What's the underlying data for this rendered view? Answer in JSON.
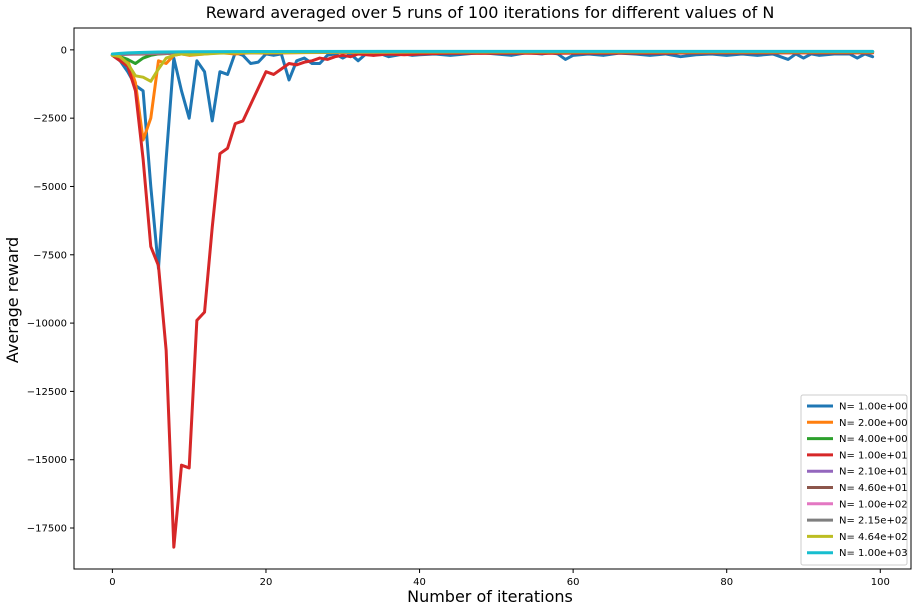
{
  "chart_data": {
    "type": "line",
    "title": "Reward averaged over 5 runs of 100 iterations for different values of N",
    "xlabel": "Number of iterations",
    "ylabel": "Average reward",
    "xlim": [
      -5,
      104
    ],
    "ylim": [
      -19000,
      800
    ],
    "xticks": [
      0,
      20,
      40,
      60,
      80,
      100
    ],
    "yticks": [
      0,
      -2500,
      -5000,
      -7500,
      -10000,
      -12500,
      -15000,
      -17500
    ],
    "grid": false,
    "legend_position": "bottom-right",
    "series": [
      {
        "name": "N= 1.00e+00",
        "color": "#1f77b4",
        "points": [
          [
            0,
            -200
          ],
          [
            1,
            -400
          ],
          [
            2,
            -800
          ],
          [
            3,
            -1300
          ],
          [
            4,
            -1500
          ],
          [
            5,
            -5000
          ],
          [
            6,
            -8000
          ],
          [
            7,
            -4000
          ],
          [
            8,
            -300
          ],
          [
            9,
            -1500
          ],
          [
            10,
            -2500
          ],
          [
            11,
            -400
          ],
          [
            12,
            -800
          ],
          [
            13,
            -2600
          ],
          [
            14,
            -800
          ],
          [
            15,
            -900
          ],
          [
            16,
            -100
          ],
          [
            17,
            -200
          ],
          [
            18,
            -500
          ],
          [
            19,
            -450
          ],
          [
            20,
            -150
          ],
          [
            21,
            -200
          ],
          [
            22,
            -150
          ],
          [
            23,
            -1100
          ],
          [
            24,
            -400
          ],
          [
            25,
            -300
          ],
          [
            26,
            -500
          ],
          [
            27,
            -500
          ],
          [
            28,
            -200
          ],
          [
            29,
            -150
          ],
          [
            30,
            -300
          ],
          [
            31,
            -150
          ],
          [
            32,
            -400
          ],
          [
            33,
            -150
          ],
          [
            34,
            -200
          ],
          [
            35,
            -150
          ],
          [
            36,
            -250
          ],
          [
            37,
            -200
          ],
          [
            38,
            -150
          ],
          [
            39,
            -200
          ],
          [
            40,
            -180
          ],
          [
            42,
            -150
          ],
          [
            44,
            -200
          ],
          [
            46,
            -150
          ],
          [
            48,
            -100
          ],
          [
            50,
            -150
          ],
          [
            52,
            -200
          ],
          [
            54,
            -100
          ],
          [
            56,
            -150
          ],
          [
            57,
            -100
          ],
          [
            58,
            -150
          ],
          [
            59,
            -350
          ],
          [
            60,
            -200
          ],
          [
            62,
            -150
          ],
          [
            64,
            -200
          ],
          [
            66,
            -120
          ],
          [
            68,
            -150
          ],
          [
            70,
            -200
          ],
          [
            72,
            -150
          ],
          [
            74,
            -250
          ],
          [
            76,
            -180
          ],
          [
            78,
            -150
          ],
          [
            80,
            -200
          ],
          [
            82,
            -150
          ],
          [
            84,
            -200
          ],
          [
            86,
            -150
          ],
          [
            88,
            -350
          ],
          [
            89,
            -150
          ],
          [
            90,
            -300
          ],
          [
            91,
            -150
          ],
          [
            92,
            -200
          ],
          [
            94,
            -150
          ],
          [
            96,
            -150
          ],
          [
            97,
            -300
          ],
          [
            98,
            -150
          ],
          [
            99,
            -250
          ]
        ]
      },
      {
        "name": "N= 2.00e+00",
        "color": "#ff7f0e",
        "points": [
          [
            0,
            -200
          ],
          [
            1,
            -300
          ],
          [
            2,
            -400
          ],
          [
            3,
            -1200
          ],
          [
            4,
            -3300
          ],
          [
            5,
            -2500
          ],
          [
            6,
            -400
          ],
          [
            7,
            -500
          ],
          [
            8,
            -200
          ],
          [
            9,
            -150
          ],
          [
            10,
            -200
          ],
          [
            12,
            -150
          ],
          [
            14,
            -100
          ],
          [
            16,
            -150
          ],
          [
            18,
            -100
          ],
          [
            20,
            -120
          ],
          [
            25,
            -100
          ],
          [
            30,
            -90
          ],
          [
            40,
            -80
          ],
          [
            50,
            -80
          ],
          [
            60,
            -80
          ],
          [
            70,
            -80
          ],
          [
            80,
            -80
          ],
          [
            90,
            -80
          ],
          [
            99,
            -80
          ]
        ]
      },
      {
        "name": "N= 4.00e+00",
        "color": "#2ca02c",
        "points": [
          [
            0,
            -200
          ],
          [
            1,
            -250
          ],
          [
            2,
            -350
          ],
          [
            3,
            -500
          ],
          [
            4,
            -300
          ],
          [
            5,
            -200
          ],
          [
            6,
            -150
          ],
          [
            8,
            -120
          ],
          [
            10,
            -100
          ],
          [
            15,
            -90
          ],
          [
            20,
            -80
          ],
          [
            30,
            -70
          ],
          [
            40,
            -70
          ],
          [
            50,
            -70
          ],
          [
            60,
            -70
          ],
          [
            70,
            -70
          ],
          [
            80,
            -70
          ],
          [
            90,
            -70
          ],
          [
            99,
            -70
          ]
        ]
      },
      {
        "name": "N= 1.00e+01",
        "color": "#d62728",
        "points": [
          [
            0,
            -200
          ],
          [
            1,
            -400
          ],
          [
            2,
            -600
          ],
          [
            3,
            -1500
          ],
          [
            4,
            -4000
          ],
          [
            5,
            -7200
          ],
          [
            6,
            -7900
          ],
          [
            7,
            -11000
          ],
          [
            8,
            -18200
          ],
          [
            9,
            -15200
          ],
          [
            10,
            -15300
          ],
          [
            11,
            -9900
          ],
          [
            12,
            -9600
          ],
          [
            13,
            -6500
          ],
          [
            14,
            -3800
          ],
          [
            15,
            -3600
          ],
          [
            16,
            -2700
          ],
          [
            17,
            -2600
          ],
          [
            18,
            -2000
          ],
          [
            19,
            -1400
          ],
          [
            20,
            -800
          ],
          [
            21,
            -900
          ],
          [
            22,
            -700
          ],
          [
            23,
            -500
          ],
          [
            24,
            -550
          ],
          [
            25,
            -450
          ],
          [
            26,
            -400
          ],
          [
            27,
            -300
          ],
          [
            28,
            -350
          ],
          [
            29,
            -250
          ],
          [
            30,
            -200
          ],
          [
            31,
            -250
          ],
          [
            32,
            -150
          ],
          [
            34,
            -200
          ],
          [
            36,
            -150
          ],
          [
            38,
            -180
          ],
          [
            40,
            -150
          ],
          [
            44,
            -120
          ],
          [
            48,
            -130
          ],
          [
            52,
            -120
          ],
          [
            56,
            -130
          ],
          [
            60,
            -120
          ],
          [
            64,
            -120
          ],
          [
            68,
            -120
          ],
          [
            72,
            -120
          ],
          [
            76,
            -110
          ],
          [
            80,
            -110
          ],
          [
            84,
            -110
          ],
          [
            88,
            -110
          ],
          [
            92,
            -110
          ],
          [
            96,
            -110
          ],
          [
            99,
            -110
          ]
        ]
      },
      {
        "name": "N= 2.10e+01",
        "color": "#9467bd",
        "points": [
          [
            0,
            -180
          ],
          [
            2,
            -160
          ],
          [
            4,
            -140
          ],
          [
            8,
            -120
          ],
          [
            15,
            -100
          ],
          [
            25,
            -90
          ],
          [
            40,
            -80
          ],
          [
            60,
            -75
          ],
          [
            80,
            -75
          ],
          [
            99,
            -75
          ]
        ]
      },
      {
        "name": "N= 4.60e+01",
        "color": "#8c564b",
        "points": [
          [
            0,
            -180
          ],
          [
            2,
            -160
          ],
          [
            4,
            -150
          ],
          [
            8,
            -130
          ],
          [
            15,
            -110
          ],
          [
            25,
            -95
          ],
          [
            40,
            -85
          ],
          [
            60,
            -80
          ],
          [
            80,
            -80
          ],
          [
            99,
            -80
          ]
        ]
      },
      {
        "name": "N= 1.00e+02",
        "color": "#e377c2",
        "points": [
          [
            0,
            -170
          ],
          [
            2,
            -150
          ],
          [
            4,
            -130
          ],
          [
            8,
            -110
          ],
          [
            15,
            -95
          ],
          [
            25,
            -85
          ],
          [
            40,
            -80
          ],
          [
            60,
            -75
          ],
          [
            80,
            -75
          ],
          [
            99,
            -75
          ]
        ]
      },
      {
        "name": "N= 2.15e+02",
        "color": "#7f7f7f",
        "points": [
          [
            0,
            -170
          ],
          [
            2,
            -140
          ],
          [
            4,
            -120
          ],
          [
            8,
            -100
          ],
          [
            15,
            -90
          ],
          [
            25,
            -80
          ],
          [
            40,
            -75
          ],
          [
            60,
            -70
          ],
          [
            80,
            -70
          ],
          [
            99,
            -70
          ]
        ]
      },
      {
        "name": "N= 4.64e+02",
        "color": "#bcbd22",
        "points": [
          [
            0,
            -200
          ],
          [
            1,
            -250
          ],
          [
            2,
            -500
          ],
          [
            3,
            -950
          ],
          [
            4,
            -1000
          ],
          [
            5,
            -1150
          ],
          [
            6,
            -700
          ],
          [
            7,
            -300
          ],
          [
            8,
            -200
          ],
          [
            9,
            -150
          ],
          [
            10,
            -180
          ],
          [
            12,
            -150
          ],
          [
            14,
            -120
          ],
          [
            16,
            -110
          ],
          [
            20,
            -100
          ],
          [
            25,
            -90
          ],
          [
            30,
            -85
          ],
          [
            40,
            -80
          ],
          [
            60,
            -80
          ],
          [
            80,
            -80
          ],
          [
            99,
            -80
          ]
        ]
      },
      {
        "name": "N= 1.00e+03",
        "color": "#17becf",
        "points": [
          [
            0,
            -150
          ],
          [
            1,
            -130
          ],
          [
            2,
            -110
          ],
          [
            4,
            -90
          ],
          [
            6,
            -80
          ],
          [
            10,
            -70
          ],
          [
            20,
            -60
          ],
          [
            40,
            -55
          ],
          [
            60,
            -55
          ],
          [
            80,
            -55
          ],
          [
            99,
            -55
          ]
        ]
      }
    ]
  }
}
